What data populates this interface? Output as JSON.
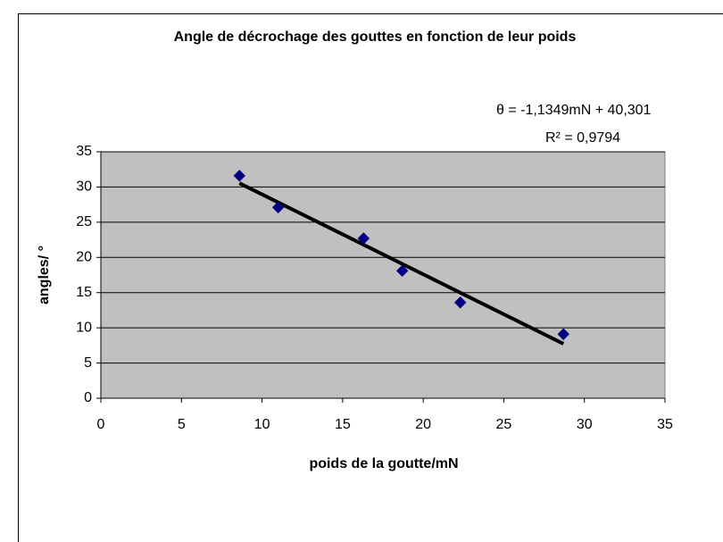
{
  "chart_data": {
    "type": "scatter",
    "title": "Angle de décrochage des gouttes en fonction de leur poids",
    "xlabel": "poids de la goutte/mN",
    "ylabel": "angles/ °",
    "x": [
      8.6,
      11.0,
      16.3,
      18.7,
      22.3,
      28.7
    ],
    "values": [
      31.6,
      27.1,
      22.7,
      18.1,
      13.6,
      9.1
    ],
    "color": "#000080",
    "xlim": [
      0,
      35
    ],
    "xticks": [
      0,
      5,
      10,
      15,
      20,
      25,
      30,
      35
    ],
    "ylim": [
      0,
      35
    ],
    "yticks": [
      0,
      5,
      10,
      15,
      20,
      25,
      30,
      35
    ],
    "grid": true,
    "trendline": {
      "equation": "θ = -1,1349mN + 40,301",
      "r_squared": "R² = 0,9794",
      "slope": -1.1349,
      "intercept": 40.301
    }
  }
}
